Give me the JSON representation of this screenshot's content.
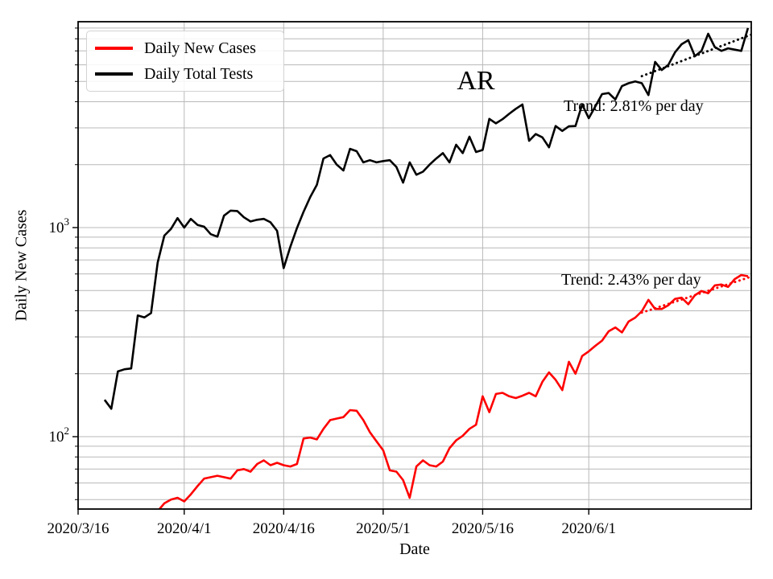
{
  "figure": {
    "title": "AR",
    "xlabel": "Date",
    "ylabel": "Daily New Cases",
    "legend": [
      {
        "label": "Daily New Cases",
        "color": "#ff0000"
      },
      {
        "label": "Daily Total Tests",
        "color": "#000000"
      }
    ],
    "annotations": {
      "tests_trend": "Trend: 2.81% per day",
      "cases_trend": "Trend: 2.43% per day"
    },
    "colors": {
      "cases": "#ff0000",
      "tests": "#000000",
      "grid": "#b8b8b8",
      "spine": "#000000",
      "background": "#ffffff"
    }
  },
  "chart_data": {
    "type": "line",
    "title": "AR",
    "xlabel": "Date",
    "ylabel": "Daily New Cases",
    "x_axis": {
      "unit": "days since 2020/3/16",
      "range_days": [
        0,
        101.5
      ],
      "tick_days": [
        0,
        16,
        31,
        46,
        61,
        77
      ],
      "tick_labels": [
        "2020/3/16",
        "2020/4/1",
        "2020/4/16",
        "2020/5/1",
        "2020/5/16",
        "2020/6/1"
      ]
    },
    "y_axis": {
      "scale": "log",
      "range": [
        45,
        9700
      ],
      "tick_values": [
        100,
        1000
      ],
      "tick_labels": [
        "10^2",
        "10^3"
      ],
      "grid": "major+minor"
    },
    "legend_position": "upper left",
    "series": [
      {
        "name": "Daily Total Tests",
        "color": "#000000",
        "start_day": 4,
        "values": [
          150,
          136,
          205,
          210,
          212,
          380,
          372,
          390,
          680,
          915,
          985,
          1110,
          1000,
          1100,
          1030,
          1010,
          930,
          905,
          1140,
          1205,
          1200,
          1120,
          1070,
          1090,
          1100,
          1060,
          965,
          640,
          810,
          995,
          1190,
          1400,
          1600,
          2140,
          2220,
          2000,
          1875,
          2380,
          2320,
          2050,
          2100,
          2050,
          2080,
          2100,
          1950,
          1640,
          2050,
          1790,
          1850,
          2000,
          2140,
          2270,
          2050,
          2490,
          2270,
          2720,
          2300,
          2350,
          3310,
          3150,
          3300,
          3500,
          3700,
          3880,
          2600,
          2800,
          2700,
          2420,
          3060,
          2900,
          3050,
          3060,
          3880,
          3335,
          3800,
          4350,
          4400,
          4100,
          4750,
          4900,
          5000,
          4900,
          4300,
          6200,
          5670,
          6000,
          6890,
          7530,
          7870,
          6600,
          7000,
          8450,
          7300,
          7000,
          7200,
          7100,
          7000,
          9000
        ]
      },
      {
        "name": "Daily New Cases",
        "color": "#ff0000",
        "start_day": 12,
        "values": [
          44,
          48,
          50,
          51,
          49,
          53,
          58,
          63,
          64,
          65,
          64,
          63,
          69,
          70,
          68,
          74,
          77,
          73,
          75,
          73,
          72,
          74,
          98,
          99,
          97,
          109,
          120,
          122,
          124,
          134,
          133,
          120,
          105,
          95,
          86,
          69,
          68,
          62,
          51,
          72,
          77,
          73,
          72,
          76,
          88,
          96,
          101,
          109,
          114,
          156,
          131,
          160,
          162,
          156,
          153,
          157,
          162,
          156,
          183,
          203,
          187,
          167,
          228,
          200,
          243,
          256,
          272,
          288,
          319,
          333,
          315,
          355,
          371,
          398,
          451,
          408,
          408,
          425,
          456,
          462,
          430,
          475,
          497,
          485,
          529,
          534,
          520,
          567,
          593,
          585
        ]
      }
    ],
    "trends": [
      {
        "series": "Daily Total Tests",
        "label": "Trend: 2.81% per day",
        "pct_per_day": 2.81,
        "start_day": 85,
        "end_day": 101.5,
        "start_value": 5300,
        "style": "dotted",
        "color": "#000000"
      },
      {
        "series": "Daily New Cases",
        "label": "Trend: 2.43% per day",
        "pct_per_day": 2.43,
        "start_day": 85,
        "end_day": 101.5,
        "start_value": 392,
        "style": "dotted",
        "color": "#ff0000"
      }
    ]
  }
}
